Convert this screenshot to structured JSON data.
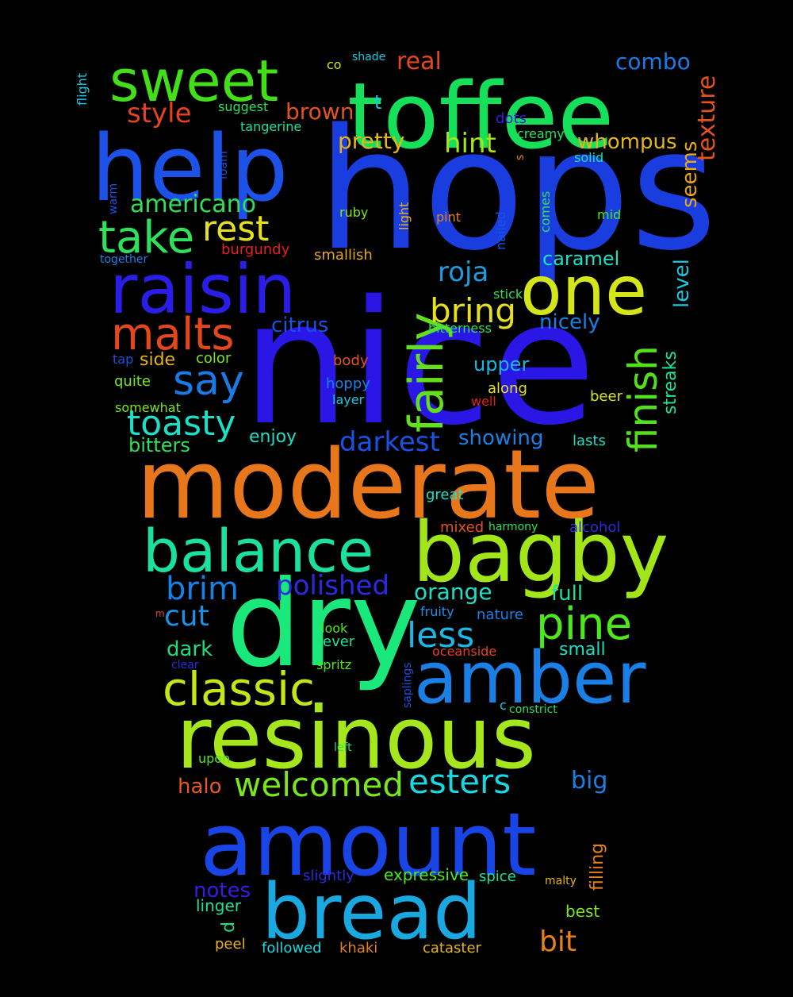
{
  "words": [
    {
      "text": "hops",
      "color": "#1a3de0"
    },
    {
      "text": "nice",
      "color": "#2a17e6"
    },
    {
      "text": "moderate",
      "color": "#e8771c"
    },
    {
      "text": "toffee",
      "color": "#16e05a"
    },
    {
      "text": "help",
      "color": "#1c52e8"
    },
    {
      "text": "dry",
      "color": "#1ae87a"
    },
    {
      "text": "resinous",
      "color": "#a6e61c"
    },
    {
      "text": "amount",
      "color": "#1a45e6"
    },
    {
      "text": "bread",
      "color": "#1aa8e0"
    },
    {
      "text": "raisin",
      "color": "#2a1ee6"
    },
    {
      "text": "sweet",
      "color": "#43e01a"
    },
    {
      "text": "bagby",
      "color": "#a2e61a"
    },
    {
      "text": "amber",
      "color": "#1a80e6"
    },
    {
      "text": "balance",
      "color": "#1ae0a0"
    },
    {
      "text": "one",
      "color": "#d4e61a"
    },
    {
      "text": "classic",
      "color": "#c2e61a"
    },
    {
      "text": "pine",
      "color": "#4ce81c"
    },
    {
      "text": "malts",
      "color": "#e5471c"
    },
    {
      "text": "take",
      "color": "#2ee05a"
    },
    {
      "text": "fairly",
      "color": "#62e01c"
    },
    {
      "text": "finish",
      "color": "#52e01c"
    },
    {
      "text": "welcomed",
      "color": "#7ae61c"
    },
    {
      "text": "esters",
      "color": "#1ad8e0"
    },
    {
      "text": "rest",
      "color": "#e6e01a"
    },
    {
      "text": "say",
      "color": "#1a7ae6"
    },
    {
      "text": "toasty",
      "color": "#1ae0c8"
    },
    {
      "text": "bring",
      "color": "#e6e01c"
    },
    {
      "text": "less",
      "color": "#1ab8e6"
    },
    {
      "text": "brim",
      "color": "#1a80e6"
    },
    {
      "text": "polished",
      "color": "#2a2ae0"
    },
    {
      "text": "cut",
      "color": "#1a92e6"
    },
    {
      "text": "roja",
      "color": "#1a9ee0"
    },
    {
      "text": "darkest",
      "color": "#1a52e6"
    },
    {
      "text": "bit",
      "color": "#e6821c"
    },
    {
      "text": "notes",
      "color": "#3a1ae6"
    },
    {
      "text": "halo",
      "color": "#e65a1c"
    },
    {
      "text": "big",
      "color": "#1a80e6"
    },
    {
      "text": "dark",
      "color": "#1ae07e"
    },
    {
      "text": "orange",
      "color": "#1ae0c8"
    },
    {
      "text": "full",
      "color": "#1ae0a0"
    },
    {
      "text": "pretty",
      "color": "#e6b41c"
    },
    {
      "text": "hint",
      "color": "#a8e61a"
    },
    {
      "text": "style",
      "color": "#e6421c"
    },
    {
      "text": "brown",
      "color": "#e6521c"
    },
    {
      "text": "real",
      "color": "#e6471c"
    },
    {
      "text": "combo",
      "color": "#1a7ae6"
    },
    {
      "text": "americano",
      "color": "#2ee05a"
    },
    {
      "text": "citrus",
      "color": "#1a52e6"
    },
    {
      "text": "nicely",
      "color": "#1a80e6"
    },
    {
      "text": "caramel",
      "color": "#1ae0c8"
    },
    {
      "text": "whompus",
      "color": "#e6b41c"
    },
    {
      "text": "seems",
      "color": "#e6a81c"
    },
    {
      "text": "texture",
      "color": "#e6521c"
    },
    {
      "text": "level",
      "color": "#1ac8e0"
    },
    {
      "text": "streaks",
      "color": "#1ae0a0"
    },
    {
      "text": "upper",
      "color": "#1ab8e6"
    },
    {
      "text": "showing",
      "color": "#1a80e6"
    },
    {
      "text": "enjoy",
      "color": "#1ae0c8"
    },
    {
      "text": "bitters",
      "color": "#2ee05a"
    },
    {
      "text": "side",
      "color": "#e6b41c"
    },
    {
      "text": "small",
      "color": "#1ae0c8"
    },
    {
      "text": "filling",
      "color": "#e6821c"
    },
    {
      "text": "slightly",
      "color": "#2a2ae0"
    },
    {
      "text": "expressive",
      "color": "#4ce81c"
    },
    {
      "text": "linger",
      "color": "#1ae0a0"
    },
    {
      "text": "best",
      "color": "#7ae61c"
    },
    {
      "text": "d",
      "color": "#1ae07e"
    },
    {
      "text": "followed",
      "color": "#1ad8e0"
    },
    {
      "text": "khaki",
      "color": "#e6821c"
    },
    {
      "text": "cataster",
      "color": "#e6b41c"
    },
    {
      "text": "peel",
      "color": "#e6b41c"
    },
    {
      "text": "color",
      "color": "#7ae61c"
    },
    {
      "text": "quite",
      "color": "#7ae61c"
    },
    {
      "text": "body",
      "color": "#e6521c"
    },
    {
      "text": "hoppy",
      "color": "#1a80e6"
    },
    {
      "text": "layer",
      "color": "#1ac8e0"
    },
    {
      "text": "well",
      "color": "#e6201c"
    },
    {
      "text": "along",
      "color": "#e6e01c"
    },
    {
      "text": "beer",
      "color": "#d4e61a"
    },
    {
      "text": "lasts",
      "color": "#1ae0c8"
    },
    {
      "text": "somewhat",
      "color": "#7ae61c"
    },
    {
      "text": "tap",
      "color": "#1a52e6"
    },
    {
      "text": "great",
      "color": "#1ae0c8"
    },
    {
      "text": "mixed",
      "color": "#e6521c"
    },
    {
      "text": "harmony",
      "color": "#2ee05a"
    },
    {
      "text": "alcohol",
      "color": "#2a2ae0"
    },
    {
      "text": "fruity",
      "color": "#1a92e6"
    },
    {
      "text": "nature",
      "color": "#1a80e6"
    },
    {
      "text": "look",
      "color": "#4ce81c"
    },
    {
      "text": "ever",
      "color": "#1ae0a0"
    },
    {
      "text": "oceanside",
      "color": "#e6421c"
    },
    {
      "text": "clear",
      "color": "#2a2ae0"
    },
    {
      "text": "spritz",
      "color": "#4ce81c"
    },
    {
      "text": "saplings",
      "color": "#1a52e6"
    },
    {
      "text": "c",
      "color": "#1ac8e0"
    },
    {
      "text": "constrict",
      "color": "#2ee05a"
    },
    {
      "text": "upon",
      "color": "#4ce81c"
    },
    {
      "text": "left",
      "color": "#2ee05a"
    },
    {
      "text": "spice",
      "color": "#1ae0a0"
    },
    {
      "text": "malty",
      "color": "#e6b41c"
    },
    {
      "text": "m",
      "color": "#e6421c"
    },
    {
      "text": "flight",
      "color": "#1ac8e0"
    },
    {
      "text": "shade",
      "color": "#1ac8e0"
    },
    {
      "text": "co",
      "color": "#d4e61a"
    },
    {
      "text": "suggest",
      "color": "#2ee05a"
    },
    {
      "text": "t",
      "color": "#1ac8e0"
    },
    {
      "text": "dots",
      "color": "#3a1ae6"
    },
    {
      "text": "creamy",
      "color": "#2ee05a"
    },
    {
      "text": "s",
      "color": "#e6821c"
    },
    {
      "text": "solid",
      "color": "#1ae0a0"
    },
    {
      "text": "tangerine",
      "color": "#1ae0a0"
    },
    {
      "text": "foam",
      "color": "#1a52e6"
    },
    {
      "text": "warm",
      "color": "#1a52e6"
    },
    {
      "text": "together",
      "color": "#1a80e6"
    },
    {
      "text": "burgundy",
      "color": "#e6201c"
    },
    {
      "text": "smallish",
      "color": "#e6a81c"
    },
    {
      "text": "ruby",
      "color": "#7ae61c"
    },
    {
      "text": "light",
      "color": "#e6b41c"
    },
    {
      "text": "pint",
      "color": "#e6821c"
    },
    {
      "text": "nailed",
      "color": "#1a52e6"
    },
    {
      "text": "comes",
      "color": "#2ee05a"
    },
    {
      "text": "mid",
      "color": "#4ce81c"
    },
    {
      "text": "stick",
      "color": "#2ee05a"
    },
    {
      "text": "bitterness",
      "color": "#2ee05a"
    }
  ]
}
